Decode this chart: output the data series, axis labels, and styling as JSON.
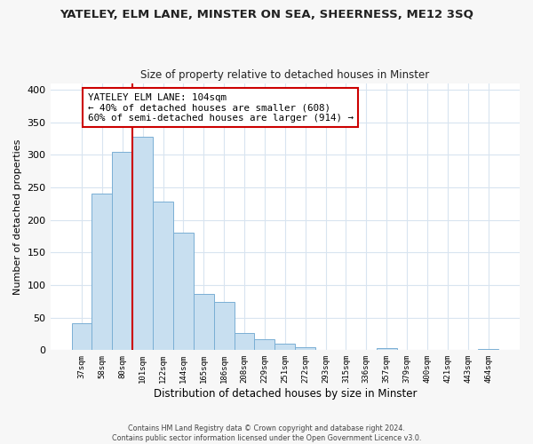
{
  "title": "YATELEY, ELM LANE, MINSTER ON SEA, SHEERNESS, ME12 3SQ",
  "subtitle": "Size of property relative to detached houses in Minster",
  "xlabel": "Distribution of detached houses by size in Minster",
  "ylabel": "Number of detached properties",
  "bar_labels": [
    "37sqm",
    "58sqm",
    "80sqm",
    "101sqm",
    "122sqm",
    "144sqm",
    "165sqm",
    "186sqm",
    "208sqm",
    "229sqm",
    "251sqm",
    "272sqm",
    "293sqm",
    "315sqm",
    "336sqm",
    "357sqm",
    "379sqm",
    "400sqm",
    "421sqm",
    "443sqm",
    "464sqm"
  ],
  "bar_values": [
    41,
    241,
    305,
    327,
    228,
    181,
    87,
    74,
    26,
    17,
    10,
    4,
    0,
    0,
    0,
    3,
    0,
    0,
    0,
    0,
    2
  ],
  "bar_color": "#c8dff0",
  "bar_edge_color": "#7aafd4",
  "vline_index": 3,
  "vline_color": "#cc0000",
  "ylim": [
    0,
    410
  ],
  "yticks": [
    0,
    50,
    100,
    150,
    200,
    250,
    300,
    350,
    400
  ],
  "annotation_title": "YATELEY ELM LANE: 104sqm",
  "annotation_line1": "← 40% of detached houses are smaller (608)",
  "annotation_line2": "60% of semi-detached houses are larger (914) →",
  "footer1": "Contains HM Land Registry data © Crown copyright and database right 2024.",
  "footer2": "Contains public sector information licensed under the Open Government Licence v3.0.",
  "bg_color": "#f7f7f7",
  "plot_bg_color": "#ffffff",
  "grid_color": "#d8e4f0"
}
